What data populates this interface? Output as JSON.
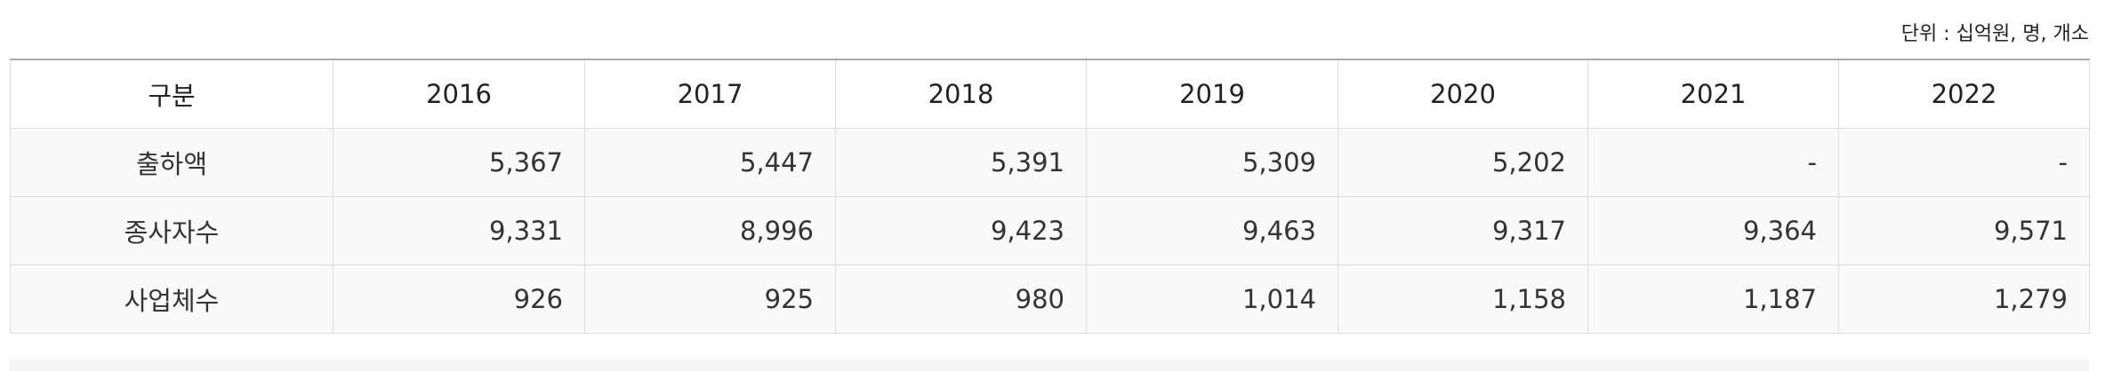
{
  "unit": "단위 : 십억원, 명, 개소",
  "table": {
    "header": [
      "구분",
      "2016",
      "2017",
      "2018",
      "2019",
      "2020",
      "2021",
      "2022"
    ],
    "rows": [
      [
        "출하액",
        "5,367",
        "5,447",
        "5,391",
        "5,309",
        "5,202",
        "-",
        "-"
      ],
      [
        "종사자수",
        "9,331",
        "8,996",
        "9,423",
        "9,463",
        "9,317",
        "9,364",
        "9,571"
      ],
      [
        "사업체수",
        "926",
        "925",
        "980",
        "1,014",
        "1,158",
        "1,187",
        "1,279"
      ]
    ]
  }
}
